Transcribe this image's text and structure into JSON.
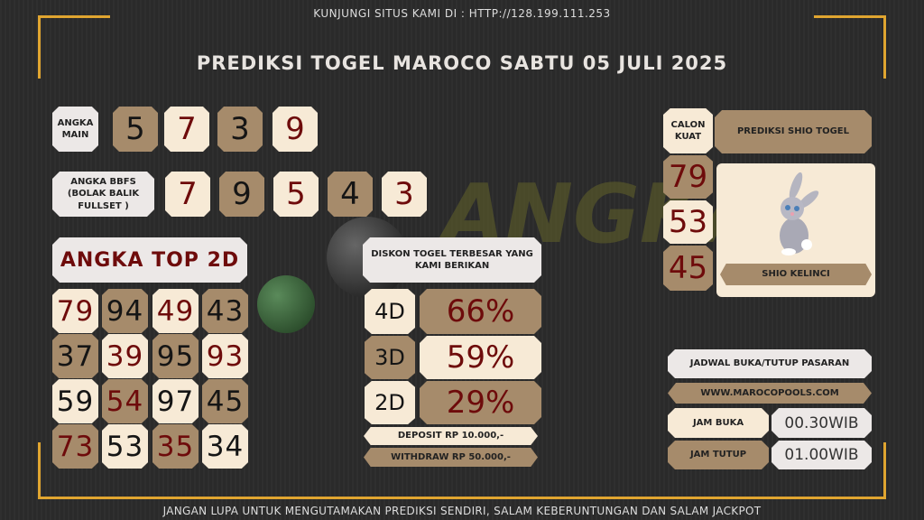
{
  "header": {
    "visit": "KUNJUNGI SITUS KAMI DI : HTTP://128.199.111.253",
    "title": "PREDIKSI TOGEL MAROCO SABTU 05 JULI 2025"
  },
  "angka_main": {
    "label": "ANGKA MAIN",
    "digits": [
      "5",
      "7",
      "3",
      "9"
    ]
  },
  "bbfs": {
    "label": "ANGKA BBFS (BOLAK BALIK FULLSET )",
    "digits": [
      "7",
      "9",
      "5",
      "4",
      "3"
    ]
  },
  "top2d": {
    "label": "ANGKA TOP 2D",
    "rows": [
      [
        "79",
        "94",
        "49",
        "43"
      ],
      [
        "37",
        "39",
        "95",
        "93"
      ],
      [
        "59",
        "54",
        "97",
        "45"
      ],
      [
        "73",
        "53",
        "35",
        "34"
      ]
    ]
  },
  "diskon": {
    "label": "DISKON TOGEL TERBESAR YANG KAMI BERIKAN",
    "items": [
      {
        "type": "4D",
        "value": "66%"
      },
      {
        "type": "3D",
        "value": "59%"
      },
      {
        "type": "2D",
        "value": "29%"
      }
    ],
    "deposit": "DEPOSIT RP 10.000,-",
    "withdraw": "WITHDRAW RP 50.000,-"
  },
  "calon": {
    "label": "CALON KUAT",
    "numbers": [
      "79",
      "53",
      "45"
    ]
  },
  "shio": {
    "title": "PREDIKSI SHIO TOGEL",
    "name": "SHIO KELINCI",
    "icon": "rabbit-icon"
  },
  "jadwal": {
    "title": "JADWAL BUKA/TUTUP PASARAN",
    "site": "WWW.MAROCOPOOLS.COM",
    "buka_label": "JAM BUKA",
    "buka": "00.30WIB",
    "tutup_label": "JAM TUTUP",
    "tutup": "01.00WIB"
  },
  "footer": "JANGAN LUPA UNTUK MENGUTAMAKAN PREDIKSI SENDIRI, SALAM KEBERUNTUNGAN DAN SALAM JACKPOT",
  "colors": {
    "cream": "#f7ead6",
    "tan": "#a68b6b",
    "red": "#6e0b0b",
    "gold": "#e0a530"
  }
}
